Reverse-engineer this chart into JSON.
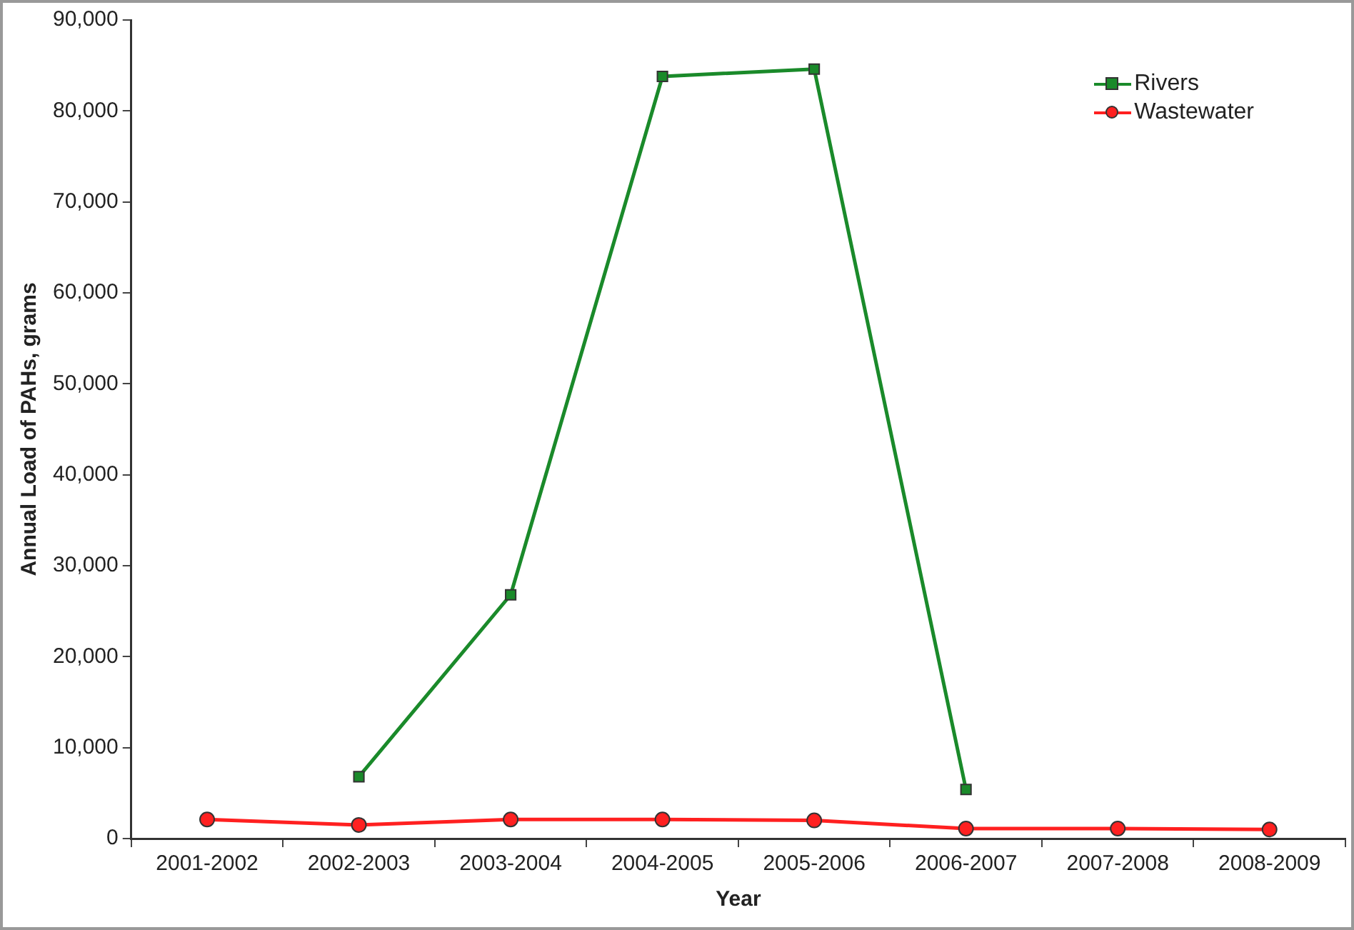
{
  "chart_data": {
    "type": "line",
    "xlabel": "Year",
    "ylabel": "Annual Load of PAHs, grams",
    "categories": [
      "2001-2002",
      "2002-2003",
      "2003-2004",
      "2004-2005",
      "2005-2006",
      "2006-2007",
      "2007-2008",
      "2008-2009"
    ],
    "series": [
      {
        "name": "Rivers",
        "color": "#1a8a2a",
        "marker": "square",
        "values": [
          null,
          6800,
          26800,
          83800,
          84600,
          5400,
          null,
          null
        ]
      },
      {
        "name": "Wastewater",
        "color": "#ff2020",
        "marker": "circle",
        "values": [
          2100,
          1500,
          2100,
          2100,
          2000,
          1100,
          1100,
          1000
        ]
      }
    ],
    "ylim": [
      0,
      90000
    ],
    "yticks": [
      0,
      {
        "value": 10000,
        "label": "10,000"
      },
      {
        "value": 20000,
        "label": "20,000"
      },
      {
        "value": 30000,
        "label": "30,000"
      },
      {
        "value": 40000,
        "label": "40,000"
      },
      {
        "value": 50000,
        "label": "50,000"
      },
      {
        "value": 60000,
        "label": "60,000"
      },
      {
        "value": 70000,
        "label": "70,000"
      },
      {
        "value": 80000,
        "label": "80,000"
      },
      {
        "value": 90000,
        "label": "90,000"
      }
    ],
    "grid": false,
    "legend": "top right",
    "line_style": "solid"
  }
}
